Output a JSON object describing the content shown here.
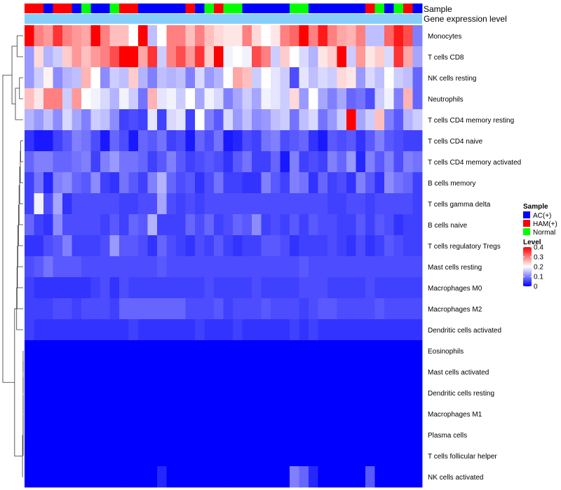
{
  "chart_data": {
    "type": "heatmap",
    "title": "",
    "annotation_labels": {
      "sample": "Sample",
      "gene": "Gene expression level"
    },
    "row_labels": [
      "Monocytes",
      "T cells CD8",
      "NK cells resting",
      "Neutrophils",
      "T cells CD4 memory resting",
      "T cells CD4 naive",
      "T cells CD4 memory activated",
      "B cells memory",
      "T cells gamma delta",
      "B cells naive",
      "T cells regulatory  Tregs",
      "Mast cells resting",
      "Macrophages M0",
      "Macrophages M2",
      "Dendritic cells activated",
      "Eosinophils",
      "Mast cells activated",
      "Dendritic cells resting",
      "Macrophages M1",
      "Plasma cells",
      "T cells follicular helper",
      "NK cells activated"
    ],
    "sample_groups": [
      "H",
      "H",
      "A",
      "H",
      "H",
      "A",
      "N",
      "A",
      "A",
      "N",
      "H",
      "H",
      "A",
      "A",
      "A",
      "A",
      "A",
      "H",
      "A",
      "N",
      "H",
      "N",
      "N",
      "A",
      "A",
      "A",
      "A",
      "A",
      "N",
      "N",
      "A",
      "A",
      "A",
      "A",
      "A",
      "A",
      "H",
      "N",
      "A",
      "N",
      "H",
      "A"
    ],
    "sample_colors": {
      "A": "#0000ff",
      "H": "#ff0000",
      "N": "#00ff00"
    },
    "gene_bar_color": "#87cefa",
    "legend_sample": {
      "title": "Sample",
      "entries": [
        {
          "label": "AC(+)",
          "key": "A"
        },
        {
          "label": "HAM(+)",
          "key": "H"
        },
        {
          "label": "Normal",
          "key": "N"
        }
      ]
    },
    "legend_level": {
      "title": "Level",
      "ticks": [
        {
          "label": "0.4",
          "value": 0.4
        },
        {
          "label": "0.3",
          "value": 0.3
        },
        {
          "label": "0.2",
          "value": 0.2
        },
        {
          "label": "0.1",
          "value": 0.1
        },
        {
          "label": "0",
          "value": 0
        }
      ]
    },
    "color_scale": {
      "min": 0,
      "mid": 0.2,
      "max": 0.4,
      "low": "#0000ff",
      "midc": "#ffffff",
      "high": "#ff0000"
    },
    "values": [
      [
        0.4,
        0.3,
        0.28,
        0.36,
        0.3,
        0.28,
        0.27,
        0.4,
        0.3,
        0.25,
        0.25,
        0.2,
        0.4,
        0.15,
        0.2,
        0.3,
        0.3,
        0.25,
        0.3,
        0.25,
        0.23,
        0.22,
        0.22,
        0.3,
        0.23,
        0.2,
        0.22,
        0.3,
        0.32,
        0.4,
        0.3,
        0.38,
        0.3,
        0.27,
        0.26,
        0.3,
        0.15,
        0.15,
        0.32,
        0.38,
        0.34,
        0.1
      ],
      [
        0.12,
        0.23,
        0.14,
        0.16,
        0.24,
        0.28,
        0.25,
        0.28,
        0.3,
        0.34,
        0.4,
        0.4,
        0.27,
        0.36,
        0.16,
        0.3,
        0.34,
        0.28,
        0.36,
        0.24,
        0.4,
        0.19,
        0.2,
        0.19,
        0.34,
        0.3,
        0.16,
        0.24,
        0.2,
        0.17,
        0.14,
        0.22,
        0.24,
        0.4,
        0.16,
        0.28,
        0.22,
        0.24,
        0.17,
        0.36,
        0.27,
        0.13
      ],
      [
        0.12,
        0.16,
        0.21,
        0.11,
        0.14,
        0.15,
        0.26,
        0.2,
        0.11,
        0.16,
        0.15,
        0.24,
        0.14,
        0.1,
        0.15,
        0.14,
        0.15,
        0.1,
        0.17,
        0.12,
        0.14,
        0.2,
        0.27,
        0.25,
        0.16,
        0.2,
        0.18,
        0.16,
        0.06,
        0.18,
        0.15,
        0.17,
        0.16,
        0.23,
        0.22,
        0.12,
        0.17,
        0.15,
        0.2,
        0.16,
        0.15,
        0.08
      ],
      [
        0.25,
        0.22,
        0.3,
        0.3,
        0.16,
        0.28,
        0.2,
        0.19,
        0.17,
        0.14,
        0.19,
        0.16,
        0.09,
        0.26,
        0.18,
        0.19,
        0.16,
        0.2,
        0.13,
        0.19,
        0.17,
        0.1,
        0.13,
        0.16,
        0.13,
        0.19,
        0.18,
        0.16,
        0.23,
        0.12,
        0.2,
        0.13,
        0.1,
        0.13,
        0.08,
        0.09,
        0.06,
        0.16,
        0.19,
        0.1,
        0.26,
        0.08
      ],
      [
        0.14,
        0.12,
        0.15,
        0.11,
        0.17,
        0.13,
        0.1,
        0.16,
        0.15,
        0.11,
        0.05,
        0.06,
        0.05,
        0.18,
        0.05,
        0.17,
        0.18,
        0.05,
        0.2,
        0.1,
        0.07,
        0.17,
        0.12,
        0.15,
        0.11,
        0.12,
        0.15,
        0.16,
        0.09,
        0.15,
        0.17,
        0.09,
        0.12,
        0.16,
        0.4,
        0.13,
        0.16,
        0.25,
        0.1,
        0.07,
        0.14,
        0.16
      ],
      [
        0.04,
        0.02,
        0.02,
        0.05,
        0.07,
        0.1,
        0.09,
        0.06,
        0.02,
        0.08,
        0.06,
        0.02,
        0.08,
        0.07,
        0.09,
        0.05,
        0.06,
        0.02,
        0.08,
        0.06,
        0.09,
        0.02,
        0.03,
        0.06,
        0.05,
        0.09,
        0.1,
        0.06,
        0.07,
        0.08,
        0.04,
        0.02,
        0.07,
        0.06,
        0.07,
        0.04,
        0.07,
        0.1,
        0.07,
        0.06,
        0.05,
        0.05
      ],
      [
        0.08,
        0.1,
        0.1,
        0.08,
        0.08,
        0.09,
        0.1,
        0.05,
        0.1,
        0.12,
        0.09,
        0.09,
        0.08,
        0.05,
        0.07,
        0.1,
        0.07,
        0.05,
        0.06,
        0.07,
        0.06,
        0.04,
        0.07,
        0.09,
        0.05,
        0.05,
        0.08,
        0.02,
        0.1,
        0.05,
        0.06,
        0.05,
        0.1,
        0.08,
        0.12,
        0.03,
        0.1,
        0.07,
        0.1,
        0.06,
        0.1,
        0.09
      ],
      [
        0.05,
        0.09,
        0.03,
        0.1,
        0.11,
        0.08,
        0.07,
        0.11,
        0.05,
        0.04,
        0.09,
        0.07,
        0.05,
        0.1,
        0.14,
        0.08,
        0.06,
        0.07,
        0.04,
        0.06,
        0.09,
        0.05,
        0.05,
        0.04,
        0.04,
        0.1,
        0.07,
        0.05,
        0.1,
        0.09,
        0.04,
        0.08,
        0.05,
        0.06,
        0.04,
        0.1,
        0.07,
        0.04,
        0.11,
        0.09,
        0.08,
        0.05
      ],
      [
        0.05,
        0.19,
        0.06,
        0.13,
        0.04,
        0.06,
        0.06,
        0.06,
        0.06,
        0.06,
        0.05,
        0.05,
        0.06,
        0.06,
        0.13,
        0.06,
        0.05,
        0.06,
        0.05,
        0.06,
        0.06,
        0.06,
        0.06,
        0.06,
        0.06,
        0.06,
        0.06,
        0.06,
        0.06,
        0.06,
        0.06,
        0.06,
        0.05,
        0.05,
        0.06,
        0.06,
        0.05,
        0.06,
        0.06,
        0.06,
        0.06,
        0.05
      ],
      [
        0.08,
        0.05,
        0.04,
        0.11,
        0.06,
        0.06,
        0.06,
        0.06,
        0.05,
        0.07,
        0.05,
        0.08,
        0.07,
        0.14,
        0.05,
        0.05,
        0.05,
        0.08,
        0.06,
        0.08,
        0.05,
        0.06,
        0.08,
        0.07,
        0.11,
        0.05,
        0.06,
        0.05,
        0.07,
        0.05,
        0.07,
        0.06,
        0.06,
        0.05,
        0.05,
        0.07,
        0.05,
        0.07,
        0.06,
        0.04,
        0.05,
        0.05
      ],
      [
        0.04,
        0.04,
        0.06,
        0.07,
        0.1,
        0.05,
        0.05,
        0.05,
        0.06,
        0.12,
        0.07,
        0.07,
        0.06,
        0.04,
        0.08,
        0.06,
        0.05,
        0.04,
        0.06,
        0.05,
        0.07,
        0.05,
        0.04,
        0.05,
        0.05,
        0.07,
        0.07,
        0.06,
        0.04,
        0.05,
        0.05,
        0.05,
        0.06,
        0.05,
        0.04,
        0.06,
        0.04,
        0.05,
        0.07,
        0.06,
        0.05,
        0.05
      ],
      [
        0.06,
        0.07,
        0.09,
        0.07,
        0.07,
        0.07,
        0.06,
        0.06,
        0.06,
        0.06,
        0.06,
        0.06,
        0.06,
        0.06,
        0.07,
        0.06,
        0.06,
        0.06,
        0.06,
        0.06,
        0.06,
        0.06,
        0.06,
        0.06,
        0.06,
        0.06,
        0.06,
        0.06,
        0.06,
        0.07,
        0.06,
        0.06,
        0.06,
        0.06,
        0.06,
        0.06,
        0.06,
        0.06,
        0.06,
        0.06,
        0.06,
        0.06
      ],
      [
        0.05,
        0.04,
        0.04,
        0.04,
        0.04,
        0.04,
        0.04,
        0.05,
        0.06,
        0.04,
        0.06,
        0.05,
        0.05,
        0.05,
        0.05,
        0.05,
        0.05,
        0.05,
        0.05,
        0.06,
        0.05,
        0.05,
        0.05,
        0.05,
        0.06,
        0.05,
        0.05,
        0.05,
        0.05,
        0.06,
        0.06,
        0.06,
        0.05,
        0.05,
        0.05,
        0.05,
        0.06,
        0.05,
        0.05,
        0.05,
        0.05,
        0.05
      ],
      [
        0.05,
        0.05,
        0.05,
        0.06,
        0.06,
        0.05,
        0.06,
        0.06,
        0.06,
        0.05,
        0.08,
        0.08,
        0.08,
        0.08,
        0.08,
        0.08,
        0.08,
        0.06,
        0.06,
        0.06,
        0.07,
        0.05,
        0.06,
        0.06,
        0.06,
        0.07,
        0.06,
        0.06,
        0.06,
        0.05,
        0.06,
        0.07,
        0.07,
        0.06,
        0.06,
        0.06,
        0.06,
        0.07,
        0.06,
        0.06,
        0.06,
        0.06
      ],
      [
        0.05,
        0.04,
        0.04,
        0.04,
        0.04,
        0.04,
        0.04,
        0.04,
        0.04,
        0.04,
        0.04,
        0.05,
        0.04,
        0.04,
        0.04,
        0.04,
        0.04,
        0.04,
        0.05,
        0.04,
        0.04,
        0.04,
        0.05,
        0.04,
        0.04,
        0.04,
        0.04,
        0.04,
        0.05,
        0.04,
        0.05,
        0.04,
        0.04,
        0.04,
        0.04,
        0.04,
        0.04,
        0.04,
        0.04,
        0.04,
        0.04,
        0.04
      ],
      [
        0,
        0,
        0,
        0,
        0,
        0,
        0,
        0,
        0,
        0,
        0,
        0,
        0,
        0,
        0,
        0,
        0,
        0,
        0,
        0,
        0,
        0,
        0,
        0,
        0,
        0,
        0,
        0,
        0,
        0,
        0,
        0,
        0,
        0,
        0,
        0,
        0,
        0,
        0,
        0,
        0,
        0
      ],
      [
        0,
        0,
        0,
        0,
        0,
        0,
        0,
        0,
        0,
        0,
        0,
        0,
        0,
        0,
        0,
        0,
        0,
        0,
        0,
        0,
        0,
        0,
        0,
        0,
        0,
        0,
        0,
        0,
        0,
        0,
        0,
        0,
        0,
        0,
        0,
        0,
        0,
        0,
        0,
        0,
        0,
        0
      ],
      [
        0,
        0,
        0,
        0,
        0,
        0,
        0,
        0,
        0,
        0,
        0,
        0,
        0,
        0,
        0,
        0,
        0,
        0,
        0,
        0,
        0,
        0,
        0,
        0,
        0,
        0,
        0,
        0,
        0,
        0,
        0,
        0,
        0,
        0,
        0,
        0,
        0,
        0,
        0,
        0,
        0,
        0
      ],
      [
        0,
        0,
        0,
        0,
        0,
        0,
        0,
        0,
        0,
        0,
        0,
        0,
        0,
        0,
        0,
        0,
        0,
        0,
        0,
        0,
        0,
        0,
        0,
        0,
        0,
        0,
        0,
        0,
        0,
        0,
        0,
        0,
        0,
        0,
        0,
        0,
        0,
        0,
        0,
        0,
        0,
        0
      ],
      [
        0,
        0,
        0,
        0,
        0,
        0,
        0,
        0,
        0,
        0,
        0,
        0,
        0,
        0,
        0,
        0,
        0,
        0,
        0,
        0,
        0,
        0,
        0,
        0,
        0,
        0,
        0,
        0,
        0,
        0,
        0,
        0,
        0,
        0,
        0,
        0,
        0,
        0,
        0,
        0,
        0,
        0
      ],
      [
        0,
        0,
        0,
        0,
        0,
        0,
        0,
        0,
        0,
        0,
        0,
        0,
        0,
        0,
        0,
        0,
        0,
        0,
        0,
        0,
        0,
        0,
        0,
        0,
        0,
        0,
        0,
        0,
        0,
        0,
        0,
        0,
        0,
        0,
        0,
        0,
        0,
        0,
        0,
        0,
        0,
        0
      ],
      [
        0,
        0,
        0,
        0,
        0,
        0,
        0,
        0,
        0,
        0,
        0,
        0,
        0,
        0,
        0.03,
        0,
        0,
        0,
        0,
        0,
        0,
        0,
        0,
        0,
        0,
        0,
        0,
        0,
        0.1,
        0.08,
        0.03,
        0,
        0,
        0,
        0,
        0,
        0.07,
        0,
        0,
        0,
        0,
        0
      ]
    ],
    "dendrogram": [
      [
        0,
        1
      ],
      [
        2,
        3
      ],
      [
        23,
        4
      ],
      [
        24,
        22
      ],
      [
        5,
        6
      ],
      [
        26,
        7
      ],
      [
        27,
        8
      ],
      [
        28,
        9
      ],
      [
        29,
        10
      ],
      [
        30,
        11
      ],
      [
        31,
        12
      ],
      [
        32,
        13
      ],
      [
        33,
        14
      ],
      [
        15,
        16
      ],
      [
        35,
        17
      ],
      [
        36,
        18
      ],
      [
        37,
        19
      ],
      [
        38,
        20
      ],
      [
        39,
        21
      ],
      [
        34,
        40
      ],
      [
        25,
        41
      ]
    ],
    "dendrogram_heights": [
      0.3,
      0.18,
      0.38,
      0.55,
      0.12,
      0.14,
      0.17,
      0.2,
      0.23,
      0.26,
      0.28,
      0.3,
      0.32,
      0.0,
      0.0,
      0.0,
      0.0,
      0.0,
      0.03,
      0.42,
      1.0
    ]
  }
}
